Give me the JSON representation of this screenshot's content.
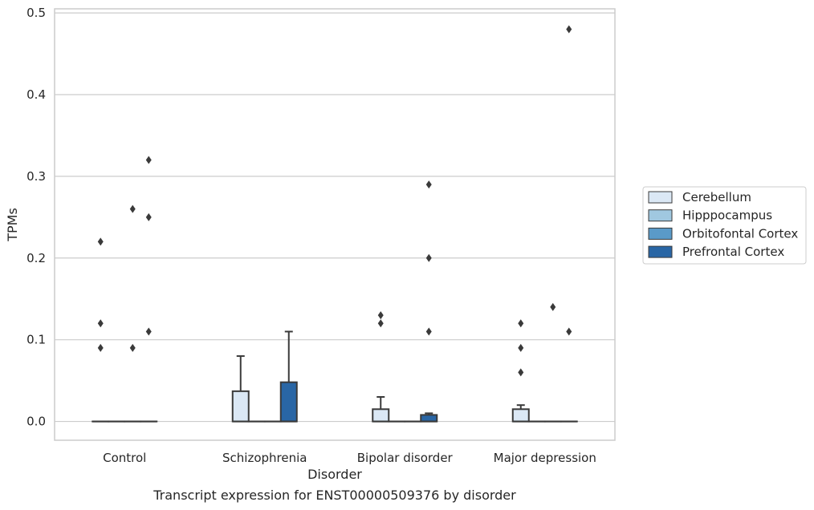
{
  "chart_data": {
    "type": "box",
    "caption": "Transcript expression for ENST00000509376 by disorder",
    "xlabel": "Disorder",
    "ylabel": "TPMs",
    "ylim": [
      -0.023,
      0.505
    ],
    "yticks": [
      "0.0",
      "0.1",
      "0.2",
      "0.3",
      "0.4",
      "0.5"
    ],
    "grid": true,
    "legend_position": "right",
    "categories": [
      "Control",
      "Schizophrenia",
      "Bipolar disorder",
      "Major depression"
    ],
    "series": [
      {
        "name": "Cerebellum",
        "color": "#dbe8f5",
        "boxes": [
          {
            "q1": 0,
            "median": 0,
            "q3": 0,
            "whisker_low": 0,
            "whisker_high": 0,
            "outliers": [
              0.22,
              0.12,
              0.09
            ]
          },
          {
            "q1": 0,
            "median": 0,
            "q3": 0.037,
            "whisker_low": 0,
            "whisker_high": 0.08,
            "outliers": []
          },
          {
            "q1": 0,
            "median": 0,
            "q3": 0.015,
            "whisker_low": 0,
            "whisker_high": 0.03,
            "outliers": [
              0.13,
              0.12
            ]
          },
          {
            "q1": 0,
            "median": 0,
            "q3": 0.015,
            "whisker_low": 0,
            "whisker_high": 0.02,
            "outliers": [
              0.12,
              0.09,
              0.06
            ]
          }
        ]
      },
      {
        "name": "Hipppocampus",
        "color": "#a0c8e0",
        "boxes": [
          {
            "q1": 0,
            "median": 0,
            "q3": 0,
            "whisker_low": 0,
            "whisker_high": 0,
            "outliers": []
          },
          {
            "q1": 0,
            "median": 0,
            "q3": 0,
            "whisker_low": 0,
            "whisker_high": 0,
            "outliers": []
          },
          {
            "q1": 0,
            "median": 0,
            "q3": 0,
            "whisker_low": 0,
            "whisker_high": 0,
            "outliers": []
          },
          {
            "q1": 0,
            "median": 0,
            "q3": 0,
            "whisker_low": 0,
            "whisker_high": 0,
            "outliers": []
          }
        ]
      },
      {
        "name": "Orbitofontal Cortex",
        "color": "#5a9ac8",
        "boxes": [
          {
            "q1": 0,
            "median": 0,
            "q3": 0,
            "whisker_low": 0,
            "whisker_high": 0,
            "outliers": [
              0.26,
              0.09
            ]
          },
          {
            "q1": 0,
            "median": 0,
            "q3": 0,
            "whisker_low": 0,
            "whisker_high": 0,
            "outliers": []
          },
          {
            "q1": 0,
            "median": 0,
            "q3": 0,
            "whisker_low": 0,
            "whisker_high": 0,
            "outliers": []
          },
          {
            "q1": 0,
            "median": 0,
            "q3": 0,
            "whisker_low": 0,
            "whisker_high": 0,
            "outliers": [
              0.14
            ]
          }
        ]
      },
      {
        "name": "Prefrontal Cortex",
        "color": "#2966a5",
        "boxes": [
          {
            "q1": 0,
            "median": 0,
            "q3": 0,
            "whisker_low": 0,
            "whisker_high": 0,
            "outliers": [
              0.32,
              0.25,
              0.11
            ]
          },
          {
            "q1": 0,
            "median": 0,
            "q3": 0.048,
            "whisker_low": 0,
            "whisker_high": 0.11,
            "outliers": []
          },
          {
            "q1": 0,
            "median": 0,
            "q3": 0.008,
            "whisker_low": 0,
            "whisker_high": 0.01,
            "outliers": [
              0.29,
              0.2,
              0.11
            ]
          },
          {
            "q1": 0,
            "median": 0,
            "q3": 0,
            "whisker_low": 0,
            "whisker_high": 0,
            "outliers": [
              0.48,
              0.11
            ]
          }
        ]
      }
    ]
  }
}
